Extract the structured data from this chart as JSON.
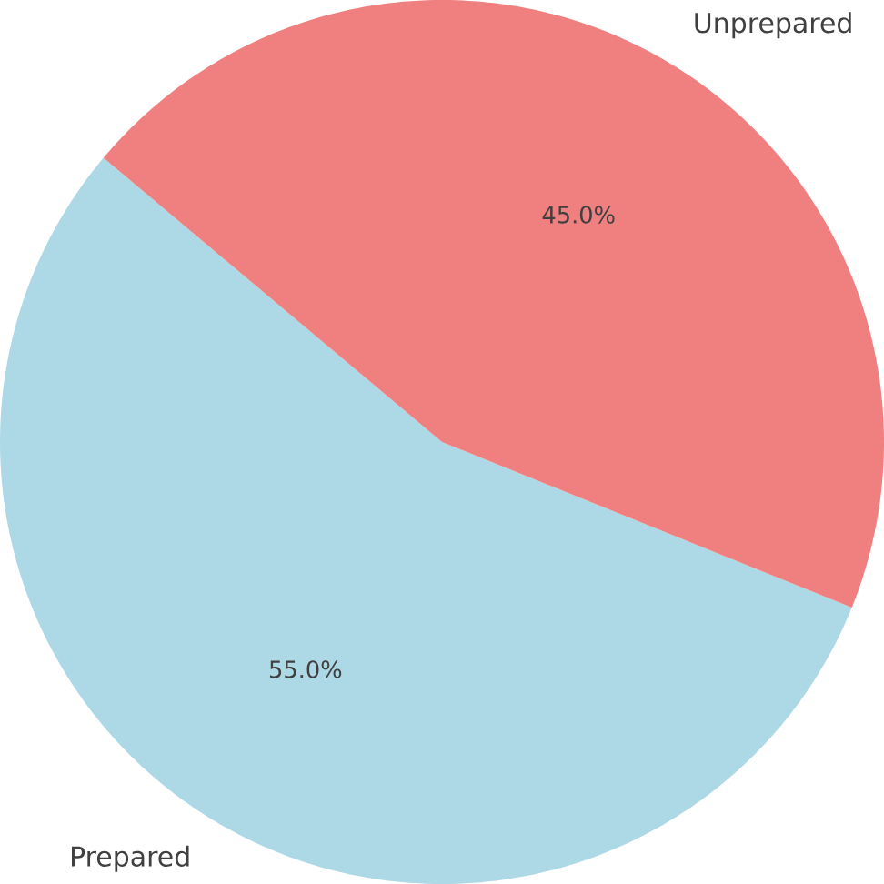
{
  "chart_data": {
    "type": "pie",
    "categories": [
      "Prepared",
      "Unprepared"
    ],
    "values": [
      55,
      45
    ],
    "colors": [
      "#add8e6",
      "#f08080"
    ],
    "value_labels": [
      "55.0%",
      "45.0%"
    ]
  }
}
